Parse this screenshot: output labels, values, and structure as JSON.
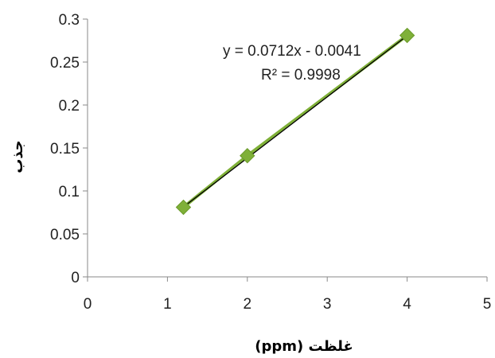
{
  "chart_data": {
    "type": "scatter",
    "title": "",
    "xlabel": "غلظت (ppm)",
    "ylabel": "جذب",
    "xlim": [
      0,
      5
    ],
    "ylim": [
      0,
      0.3
    ],
    "x_ticks": [
      "0",
      "1",
      "2",
      "3",
      "4",
      "5"
    ],
    "y_ticks": [
      "0",
      "0.05",
      "0.1",
      "0.15",
      "0.2",
      "0.25",
      "0.3"
    ],
    "grid": false,
    "legend": "none",
    "series": [
      {
        "marker": "diamond",
        "color": "#7fb038",
        "points": [
          {
            "x": 1.2,
            "y": 0.081
          },
          {
            "x": 2.0,
            "y": 0.141
          },
          {
            "x": 4.0,
            "y": 0.281
          }
        ]
      }
    ],
    "trendline": {
      "type": "linear",
      "slope": 0.0712,
      "intercept": -0.0041,
      "x_range": [
        1.2,
        4.0
      ],
      "color": "#000000",
      "equation": "y = 0.0712x - 0.0041",
      "r_squared": "R² = 0.9998"
    }
  }
}
